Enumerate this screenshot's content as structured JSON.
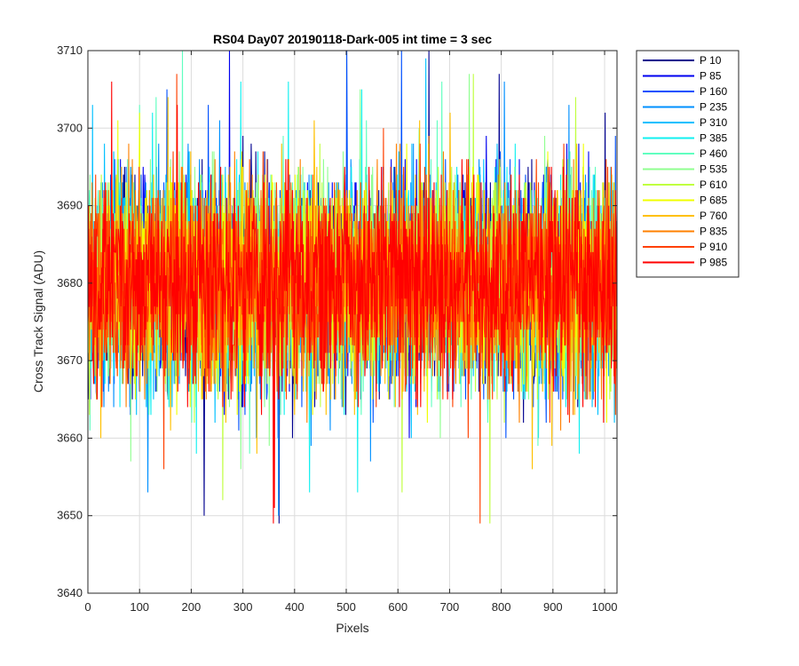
{
  "chart_data": {
    "type": "line",
    "title": "RS04 Day07 20190118-Dark-005 int time = 3 sec",
    "xlabel": "Pixels",
    "ylabel": "Cross Track Signal (ADU)",
    "xlim": [
      0,
      1024
    ],
    "ylim": [
      3640,
      3710
    ],
    "xticks": [
      0,
      100,
      200,
      300,
      400,
      500,
      600,
      700,
      800,
      900,
      1000
    ],
    "yticks": [
      3640,
      3650,
      3660,
      3670,
      3680,
      3690,
      3700,
      3710
    ],
    "grid": true,
    "legend_position": "outside-right",
    "x_points": 1024,
    "series_mean": 3680,
    "typical_range": [
      3665,
      3697
    ],
    "extremes": {
      "min": 3649,
      "max": 3710
    },
    "series": [
      {
        "name": "P 10",
        "color": "#00008f"
      },
      {
        "name": "P 85",
        "color": "#0000f0"
      },
      {
        "name": "P 160",
        "color": "#0050ff"
      },
      {
        "name": "P 235",
        "color": "#0090ff"
      },
      {
        "name": "P 310",
        "color": "#00c0ff"
      },
      {
        "name": "P 385",
        "color": "#10f0f0"
      },
      {
        "name": "P 460",
        "color": "#60ffc0"
      },
      {
        "name": "P 535",
        "color": "#90ff90"
      },
      {
        "name": "P 610",
        "color": "#c0ff40"
      },
      {
        "name": "P 685",
        "color": "#f0ff00"
      },
      {
        "name": "P 760",
        "color": "#ffc000"
      },
      {
        "name": "P 835",
        "color": "#ff8000"
      },
      {
        "name": "P 910",
        "color": "#ff4000"
      },
      {
        "name": "P 985",
        "color": "#ff0000"
      }
    ]
  }
}
